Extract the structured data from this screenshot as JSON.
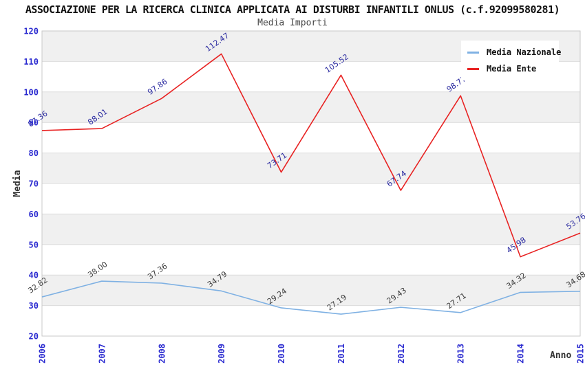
{
  "header": {
    "title": "ASSOCIAZIONE PER LA RICERCA CLINICA APPLICATA AI DISTURBI INFANTILI ONLUS (c.f.92099580281)",
    "subtitle": "Media Importi"
  },
  "axes": {
    "ylabel": "Media",
    "xlabel": "Anno",
    "yticks": [
      20,
      30,
      40,
      50,
      60,
      70,
      80,
      90,
      100,
      110,
      120
    ],
    "xticks": [
      "2006",
      "2007",
      "2008",
      "2009",
      "2010",
      "2011",
      "2012",
      "2013",
      "2014",
      "2015"
    ]
  },
  "chart_data": {
    "type": "line",
    "title": "Media Importi",
    "xlabel": "Anno",
    "ylabel": "Media",
    "x": [
      2006,
      2007,
      2008,
      2009,
      2010,
      2011,
      2012,
      2013,
      2014,
      2015
    ],
    "ylim": [
      20,
      120
    ],
    "grid": true,
    "legend_position": "top-right",
    "band_color": "#f0f0f0",
    "grid_color": "#dcdcdc",
    "border_color": "#c8c8c8",
    "tick_label_color": "#2b2bd0",
    "axis_label_color": "#333333",
    "series": [
      {
        "name": "Media Nazionale",
        "color": "#7fb1e3",
        "label_color": "#3b3b3b",
        "values": [
          32.82,
          38.0,
          37.36,
          34.79,
          29.24,
          27.19,
          29.43,
          27.71,
          34.32,
          34.68
        ]
      },
      {
        "name": "Media Ente",
        "color": "#e82323",
        "label_color": "#2a2aa0",
        "values": [
          87.36,
          88.01,
          97.86,
          112.47,
          73.71,
          105.52,
          67.74,
          98.77,
          45.98,
          53.76
        ]
      }
    ]
  }
}
